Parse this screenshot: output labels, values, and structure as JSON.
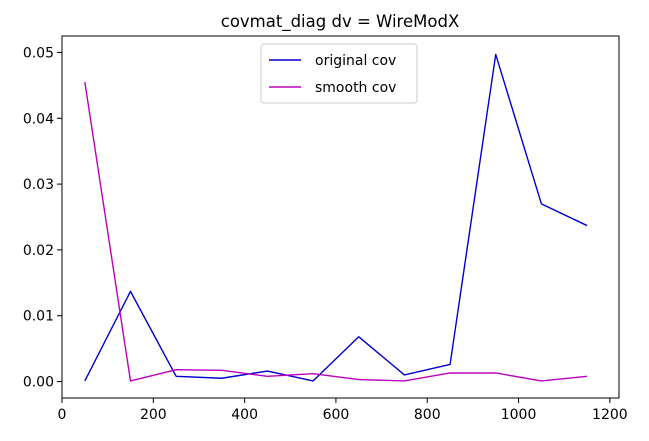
{
  "chart_data": {
    "type": "line",
    "title": "covmat_diag dv = WireModX",
    "xlabel": "",
    "ylabel": "",
    "x": [
      50,
      150,
      250,
      350,
      450,
      550,
      650,
      750,
      850,
      950,
      1050,
      1150
    ],
    "series": [
      {
        "name": "original cov",
        "color": "#0000cc",
        "values": [
          0.0001,
          0.0137,
          0.0008,
          0.0005,
          0.0016,
          0.0001,
          0.0068,
          0.001,
          0.0026,
          0.0497,
          0.027,
          0.0237
        ]
      },
      {
        "name": "smooth cov",
        "color": "#bb00bb",
        "values": [
          0.0455,
          0.0001,
          0.0018,
          0.0017,
          0.0008,
          0.0012,
          0.0003,
          0.0001,
          0.0013,
          0.0013,
          0.0001,
          0.0008
        ]
      }
    ],
    "xlim": [
      0,
      1220
    ],
    "ylim": [
      -0.0025,
      0.0525
    ],
    "xticks": [
      0,
      200,
      400,
      600,
      800,
      1000,
      1200
    ],
    "xtick_labels": [
      "0",
      "200",
      "400",
      "600",
      "800",
      "1000",
      "1200"
    ],
    "yticks": [
      0.0,
      0.01,
      0.02,
      0.03,
      0.04,
      0.05
    ],
    "ytick_labels": [
      "0.00",
      "0.01",
      "0.02",
      "0.03",
      "0.04",
      "0.05"
    ],
    "grid": false,
    "legend_position": "top-center"
  }
}
